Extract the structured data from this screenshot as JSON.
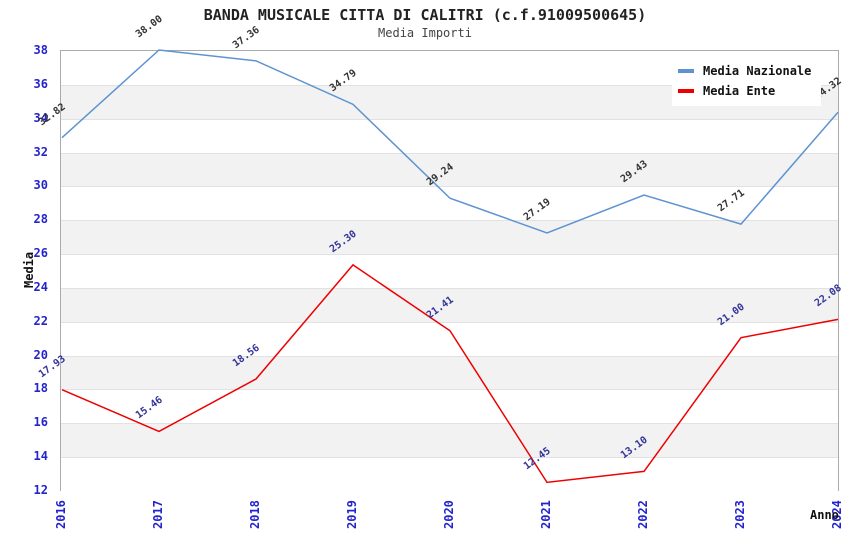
{
  "header": {
    "title": "BANDA MUSICALE CITTA DI CALITRI (c.f.91009500645)",
    "subtitle": "Media Importi"
  },
  "chart_data": {
    "type": "line",
    "x": [
      "2016",
      "2017",
      "2018",
      "2019",
      "2020",
      "2021",
      "2022",
      "2023",
      "2024"
    ],
    "series": [
      {
        "name": "Media Nazionale",
        "color": "#5d93d1",
        "label_color": "#333333",
        "values": [
          32.82,
          38.0,
          37.36,
          34.79,
          29.24,
          27.19,
          29.43,
          27.71,
          34.32
        ]
      },
      {
        "name": "Media Ente",
        "color": "#ee0000",
        "label_color": "#333399",
        "values": [
          17.93,
          15.46,
          18.56,
          25.3,
          21.41,
          12.45,
          13.1,
          21.0,
          22.08
        ]
      }
    ],
    "xlabel": "Anno",
    "ylabel": "Media",
    "ylim": [
      12,
      38
    ],
    "ytick_step": 2,
    "y_tick_labels": [
      "12",
      "14",
      "16",
      "18",
      "20",
      "22",
      "24",
      "26",
      "28",
      "30",
      "32",
      "34",
      "36",
      "38"
    ],
    "grid": true,
    "legend_position": "top-right",
    "band_colors": [
      "#ffffff",
      "#f2f2f2"
    ],
    "tick_label_color": "#2424cc",
    "value_label_decimals": 2
  }
}
